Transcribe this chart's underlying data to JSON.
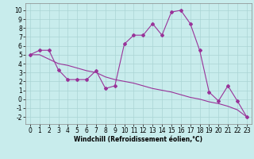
{
  "xlabel": "Windchill (Refroidissement éolien,°C)",
  "background_color": "#c8ecec",
  "line_color": "#993399",
  "xlim": [
    -0.5,
    23.5
  ],
  "ylim": [
    -2.8,
    10.8
  ],
  "x_hours": [
    0,
    1,
    2,
    3,
    4,
    5,
    6,
    7,
    8,
    9,
    10,
    11,
    12,
    13,
    14,
    15,
    16,
    17,
    18,
    19,
    20,
    21,
    22,
    23
  ],
  "temp_line": [
    5.0,
    5.5,
    5.5,
    3.3,
    2.2,
    2.2,
    2.2,
    3.2,
    1.2,
    1.5,
    6.2,
    7.2,
    7.2,
    8.5,
    7.2,
    9.8,
    10.0,
    8.5,
    5.5,
    0.8,
    -0.2,
    1.5,
    -0.2,
    -2.0
  ],
  "windchill_line": [
    5.0,
    5.0,
    4.5,
    4.0,
    3.8,
    3.5,
    3.2,
    3.0,
    2.5,
    2.2,
    2.0,
    1.8,
    1.5,
    1.2,
    1.0,
    0.8,
    0.5,
    0.2,
    0.0,
    -0.3,
    -0.5,
    -0.8,
    -1.2,
    -2.0
  ],
  "yticks": [
    -2,
    -1,
    0,
    1,
    2,
    3,
    4,
    5,
    6,
    7,
    8,
    9,
    10
  ],
  "xticks": [
    0,
    1,
    2,
    3,
    4,
    5,
    6,
    7,
    8,
    9,
    10,
    11,
    12,
    13,
    14,
    15,
    16,
    17,
    18,
    19,
    20,
    21,
    22,
    23
  ],
  "grid_color": "#aad4d4",
  "marker": "D",
  "marker_size": 2.0,
  "line_width": 0.8,
  "tick_fontsize": 5.5,
  "xlabel_fontsize": 5.5
}
